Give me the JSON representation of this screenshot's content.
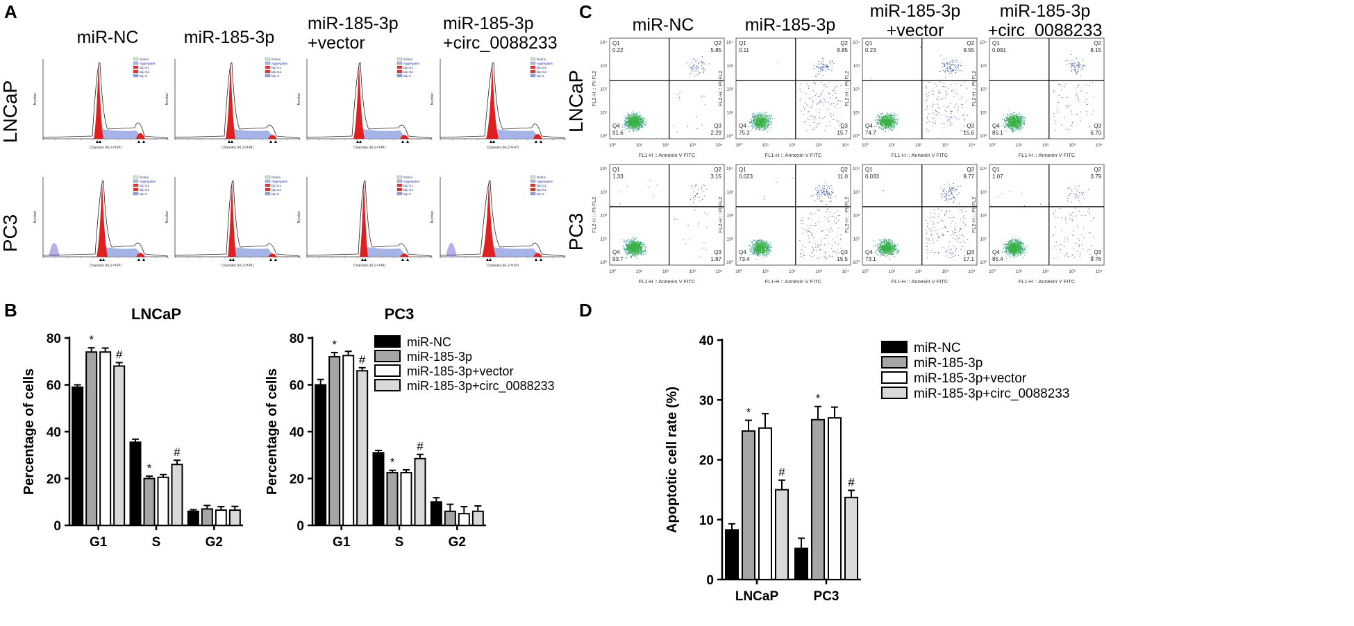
{
  "panels": {
    "a": "A",
    "b": "B",
    "c": "C",
    "d": "D"
  },
  "conditions": [
    "miR-NC",
    "miR-185-3p",
    "miR-185-3p\n+vector",
    "miR-185-3p\n+circ_0088233"
  ],
  "cell_lines": [
    "LNCaP",
    "PC3"
  ],
  "histogram": {
    "x_axis_label": "Channels (FL2-H-PI)",
    "y_axis_label": "Number",
    "legend": [
      "Debris",
      "Aggregates",
      "Dip G1",
      "Dip G2",
      "Dip S"
    ]
  },
  "flow": {
    "x_axis_label": "FL1-H :: Annexin V FITC",
    "y_axis_label": "FL2-H :: PI-FL2",
    "tick_labels": [
      "10⁰",
      "10¹",
      "10²",
      "10³",
      "10⁴"
    ],
    "quadrant_names": [
      "Q1",
      "Q2",
      "Q3",
      "Q4"
    ],
    "values": [
      [
        {
          "Q1": "0.22",
          "Q2": "5.85",
          "Q3": "2.29",
          "Q4": "91.6"
        },
        {
          "Q1": "0.11",
          "Q2": "8.85",
          "Q3": "15.7",
          "Q4": "75.3"
        },
        {
          "Q1": "0.23",
          "Q2": "9.55",
          "Q3": "15.6",
          "Q4": "74.7"
        },
        {
          "Q1": "0.091",
          "Q2": "8.15",
          "Q3": "6.70",
          "Q4": "85.1"
        }
      ],
      [
        {
          "Q1": "1.33",
          "Q2": "3.15",
          "Q3": "1.87",
          "Q4": "93.7"
        },
        {
          "Q1": "0.023",
          "Q2": "11.0",
          "Q3": "15.5",
          "Q4": "73.4"
        },
        {
          "Q1": "0.033",
          "Q2": "9.77",
          "Q3": "17.1",
          "Q4": "73.1"
        },
        {
          "Q1": "1.07",
          "Q2": "3.79",
          "Q3": "9.76",
          "Q4": "85.4"
        }
      ]
    ]
  },
  "legend_labels": [
    "miR-NC",
    "miR-185-3p",
    "miR-185-3p+vector",
    "miR-185-3p+circ_0088233"
  ],
  "series_colors": [
    "#000000",
    "#a6a6a6",
    "#ffffff",
    "#d9d9d9"
  ],
  "chart_data": [
    {
      "type": "bar",
      "title": "LNCaP",
      "ylabel": "Percentage of cells",
      "categories": [
        "G1",
        "S",
        "G2"
      ],
      "ylim": [
        0,
        80
      ],
      "yticks": [
        0,
        20,
        40,
        60,
        80
      ],
      "series": [
        {
          "name": "miR-NC",
          "values": [
            59,
            35.5,
            6
          ],
          "errors": [
            1,
            1.3,
            0.7
          ],
          "marks": [
            "",
            "",
            ""
          ]
        },
        {
          "name": "miR-185-3p",
          "values": [
            74,
            20,
            7
          ],
          "errors": [
            1.8,
            1,
            1.5
          ],
          "marks": [
            "*",
            "*",
            ""
          ]
        },
        {
          "name": "miR-185-3p+vector",
          "values": [
            74,
            20.5,
            6.5
          ],
          "errors": [
            1.7,
            1.2,
            1.5
          ],
          "marks": [
            "",
            "",
            ""
          ]
        },
        {
          "name": "miR-185-3p+circ_0088233",
          "values": [
            68,
            26,
            6.5
          ],
          "errors": [
            1.5,
            1.8,
            1.6
          ],
          "marks": [
            "#",
            "#",
            ""
          ]
        }
      ]
    },
    {
      "type": "bar",
      "title": "PC3",
      "ylabel": "Percentage of cells",
      "categories": [
        "G1",
        "S",
        "G2"
      ],
      "ylim": [
        0,
        80
      ],
      "yticks": [
        0,
        20,
        40,
        60,
        80
      ],
      "series": [
        {
          "name": "miR-NC",
          "values": [
            60,
            31,
            10
          ],
          "errors": [
            2.3,
            1,
            1.8
          ],
          "marks": [
            "",
            "",
            ""
          ]
        },
        {
          "name": "miR-185-3p",
          "values": [
            72,
            22.5,
            6
          ],
          "errors": [
            1.8,
            1,
            3
          ],
          "marks": [
            "*",
            "*",
            ""
          ]
        },
        {
          "name": "miR-185-3p+vector",
          "values": [
            72.5,
            22.5,
            5
          ],
          "errors": [
            1.8,
            1.2,
            3
          ],
          "marks": [
            "",
            "",
            ""
          ]
        },
        {
          "name": "miR-185-3p+circ_0088233",
          "values": [
            66,
            28.5,
            6
          ],
          "errors": [
            1.3,
            1.8,
            2.3
          ],
          "marks": [
            "#",
            "#",
            ""
          ]
        }
      ]
    },
    {
      "type": "bar",
      "title": "",
      "ylabel": "Apoptotic cell rate (%)",
      "categories": [
        "LNCaP",
        "PC3"
      ],
      "ylim": [
        0,
        40
      ],
      "yticks": [
        0,
        10,
        20,
        30,
        40
      ],
      "series": [
        {
          "name": "miR-NC",
          "values": [
            8.3,
            5.2
          ],
          "errors": [
            1,
            1.7
          ],
          "marks": [
            "",
            ""
          ]
        },
        {
          "name": "miR-185-3p",
          "values": [
            24.8,
            26.7
          ],
          "errors": [
            1.8,
            2.2
          ],
          "marks": [
            "*",
            "*"
          ]
        },
        {
          "name": "miR-185-3p+vector",
          "values": [
            25.3,
            27
          ],
          "errors": [
            2.4,
            1.8
          ],
          "marks": [
            "",
            ""
          ]
        },
        {
          "name": "miR-185-3p+circ_0088233",
          "values": [
            15,
            13.7
          ],
          "errors": [
            1.6,
            1.2
          ],
          "marks": [
            "#",
            "#"
          ]
        }
      ]
    }
  ]
}
